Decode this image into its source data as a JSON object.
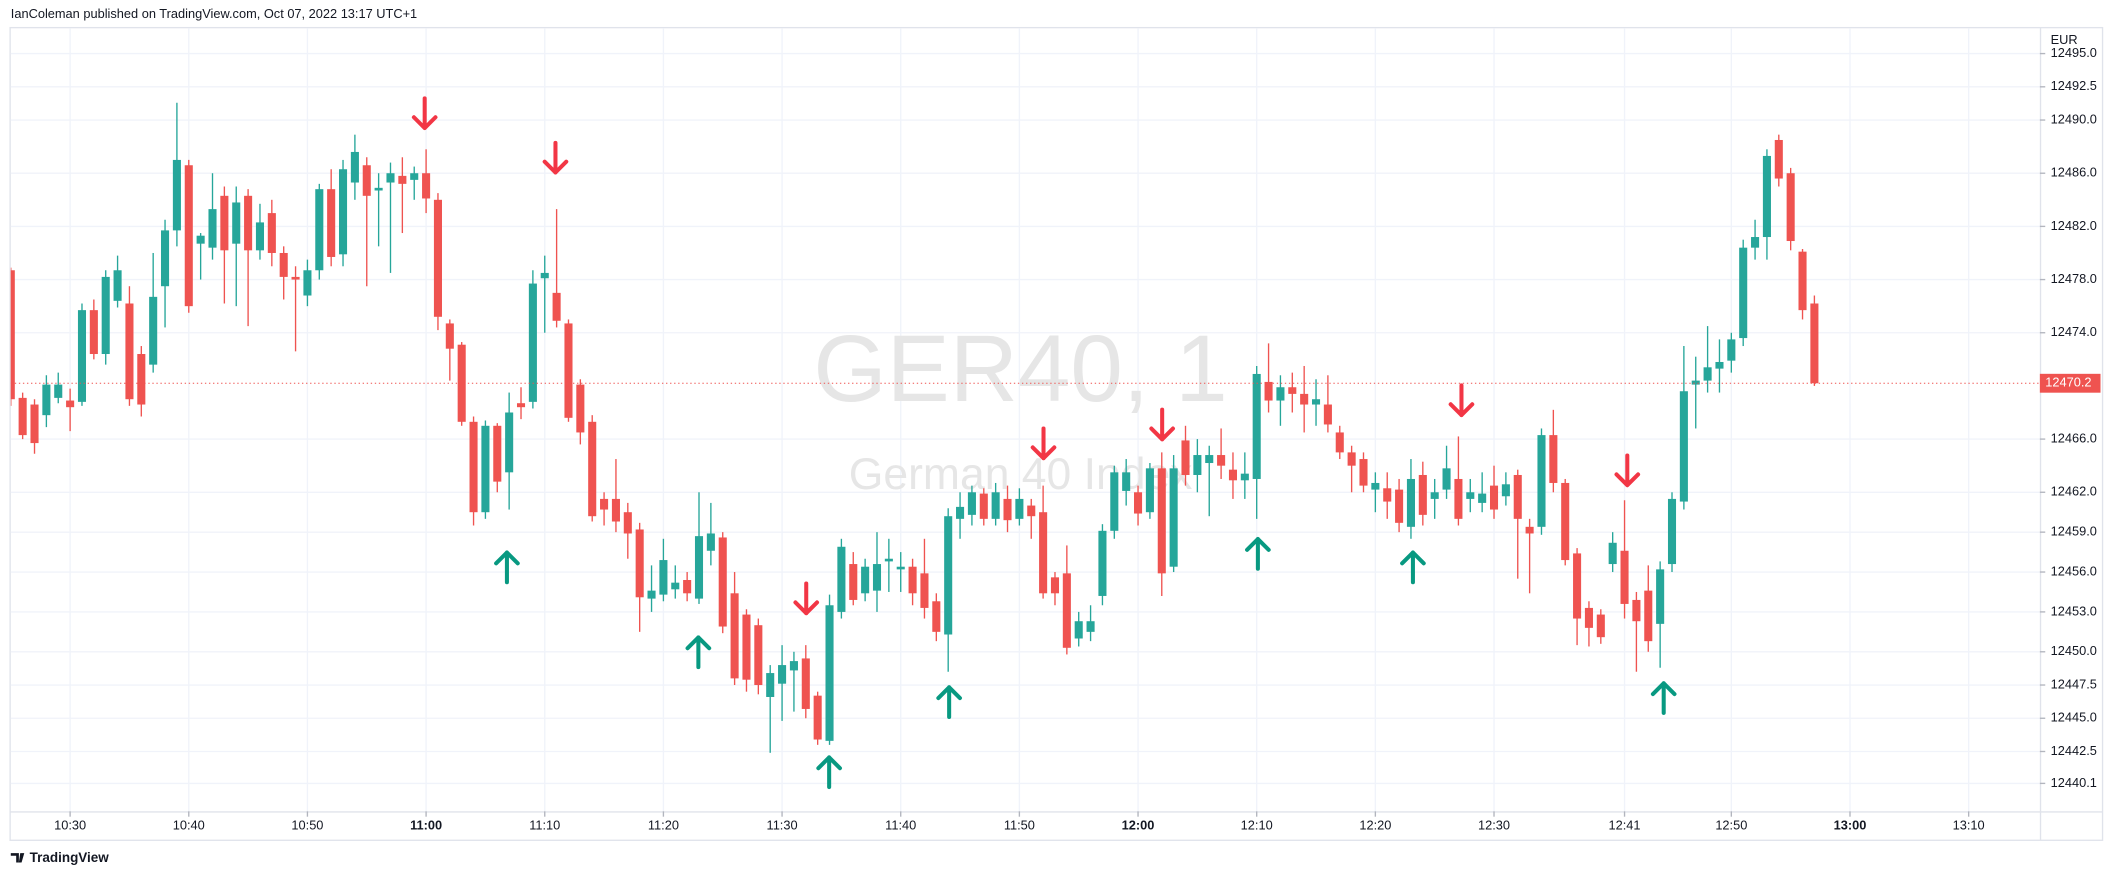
{
  "header": "IanColeman published on TradingView.com, Oct 07, 2022 13:17 UTC+1",
  "footer_brand": "TradingView",
  "chart_data": {
    "type": "candlestick",
    "title": "GER40, 1",
    "subtitle": "German 40 Index",
    "currency": "EUR",
    "up_color": "#26a69a",
    "down_color": "#ef5350",
    "grid": true,
    "last_price": 12470.2,
    "xlim": [
      "10:25",
      "13:16"
    ],
    "xticks": [
      "10:30",
      "10:40",
      "10:50",
      "11:00",
      "11:10",
      "11:20",
      "11:30",
      "11:40",
      "11:50",
      "12:00",
      "12:10",
      "12:20",
      "12:30",
      "12:41",
      "12:50",
      "13:00",
      "13:10"
    ],
    "ylim": [
      12438.0,
      12496.8
    ],
    "yticks": [
      {
        "value": 12440.1,
        "label": "12440.1"
      },
      {
        "value": 12442.5,
        "label": "12442.5"
      },
      {
        "value": 12445,
        "label": "12445.0"
      },
      {
        "value": 12447.5,
        "label": "12447.5"
      },
      {
        "value": 12450,
        "label": "12450.0"
      },
      {
        "value": 12453,
        "label": "12453.0"
      },
      {
        "value": 12456,
        "label": "12456.0"
      },
      {
        "value": 12459,
        "label": "12459.0"
      },
      {
        "value": 12462,
        "label": "12462.0"
      },
      {
        "value": 12466,
        "label": "12466.0"
      },
      {
        "value": 12474,
        "label": "12474.0"
      },
      {
        "value": 12478,
        "label": "12478.0"
      },
      {
        "value": 12482,
        "label": "12482.0"
      },
      {
        "value": 12486,
        "label": "12486.0"
      },
      {
        "value": 12490,
        "label": "12490.0"
      },
      {
        "value": 12492.5,
        "label": "12492.5"
      },
      {
        "value": 12495,
        "label": "12495.0"
      }
    ],
    "x": [
      "10:25",
      "10:26",
      "10:27",
      "10:28",
      "10:29",
      "10:30",
      "10:31",
      "10:32",
      "10:33",
      "10:34",
      "10:35",
      "10:36",
      "10:37",
      "10:38",
      "10:39",
      "10:40",
      "10:41",
      "10:42",
      "10:43",
      "10:44",
      "10:45",
      "10:46",
      "10:47",
      "10:48",
      "10:49",
      "10:50",
      "10:51",
      "10:52",
      "10:53",
      "10:54",
      "10:55",
      "10:56",
      "10:57",
      "10:58",
      "10:59",
      "11:00",
      "11:01",
      "11:02",
      "11:03",
      "11:04",
      "11:05",
      "11:06",
      "11:07",
      "11:08",
      "11:09",
      "11:10",
      "11:11",
      "11:12",
      "11:13",
      "11:14",
      "11:15",
      "11:16",
      "11:17",
      "11:18",
      "11:19",
      "11:20",
      "11:21",
      "11:22",
      "11:23",
      "11:24",
      "11:25",
      "11:26",
      "11:27",
      "11:28",
      "11:29",
      "11:30",
      "11:31",
      "11:32",
      "11:33",
      "11:34",
      "11:35",
      "11:36",
      "11:37",
      "11:38",
      "11:39",
      "11:40",
      "11:41",
      "11:42",
      "11:43",
      "11:44",
      "11:45",
      "11:46",
      "11:47",
      "11:48",
      "11:49",
      "11:50",
      "11:51",
      "11:52",
      "11:53",
      "11:54",
      "11:55",
      "11:56",
      "11:57",
      "11:58",
      "11:59",
      "12:00",
      "12:01",
      "12:02",
      "12:03",
      "12:04",
      "12:05",
      "12:06",
      "12:07",
      "12:08",
      "12:09",
      "12:10",
      "12:11",
      "12:12",
      "12:13",
      "12:14",
      "12:15",
      "12:16",
      "12:17",
      "12:18",
      "12:19",
      "12:20",
      "12:21",
      "12:22",
      "12:23",
      "12:24",
      "12:25",
      "12:26",
      "12:27",
      "12:28",
      "12:29",
      "12:30",
      "12:31",
      "12:32",
      "12:33",
      "12:34",
      "12:35",
      "12:36",
      "12:37",
      "12:38",
      "12:39",
      "12:40",
      "12:41",
      "12:42",
      "12:43",
      "12:44",
      "12:45",
      "12:46",
      "12:47",
      "12:48",
      "12:49",
      "12:50",
      "12:51",
      "12:52",
      "12:53",
      "12:54",
      "12:55",
      "12:56",
      "12:57"
    ],
    "open": [
      12478.7,
      12469.1,
      12468.6,
      12467.8,
      12469.1,
      12468.9,
      12468.8,
      12475.7,
      12472.4,
      12476.4,
      12476.2,
      12472.4,
      12471.6,
      12477.5,
      12481.7,
      12486.6,
      12480.7,
      12480.4,
      12484.3,
      12480.7,
      12484.3,
      12480.2,
      12483.0,
      12480.0,
      12478.2,
      12476.8,
      12478.7,
      12484.8,
      12479.9,
      12485.3,
      12486.6,
      12484.7,
      12485.3,
      12485.8,
      12485.5,
      12486.0,
      12484.0,
      12474.7,
      12473.1,
      12467.3,
      12460.5,
      12467.0,
      12463.5,
      12468.7,
      12468.8,
      12478.1,
      12477.0,
      12474.7,
      12470.1,
      12467.3,
      12461.5,
      12461.5,
      12460.5,
      12459.2,
      12454.0,
      12454.3,
      12454.7,
      12455.4,
      12454.0,
      12457.6,
      12458.6,
      12454.4,
      12452.8,
      12452.0,
      12446.6,
      12447.6,
      12448.6,
      12449.5,
      12446.7,
      12443.3,
      12453.0,
      12456.6,
      12454.4,
      12454.6,
      12456.8,
      12456.2,
      12456.4,
      12455.9,
      12453.8,
      12451.3,
      12460.0,
      12460.3,
      12461.9,
      12460.0,
      12461.5,
      12460.0,
      12461.0,
      12460.5,
      12455.6,
      12455.9,
      12451.0,
      12451.5,
      12454.2,
      12459.1,
      12462.1,
      12462.0,
      12460.5,
      12463.8,
      12456.4,
      12465.9,
      12463.3,
      12464.2,
      12464.8,
      12463.7,
      12462.9,
      12463.0,
      12470.3,
      12468.9,
      12469.9,
      12469.4,
      12468.6,
      12468.6,
      12466.5,
      12465.0,
      12464.5,
      12462.2,
      12462.3,
      12462.2,
      12459.4,
      12463.3,
      12461.5,
      12462.2,
      12463.0,
      12461.5,
      12461.2,
      12462.5,
      12461.7,
      12463.3,
      12459.4,
      12459.4,
      12466.3,
      12462.7,
      12457.4,
      12453.3,
      12452.8,
      12456.6,
      12457.6,
      12453.9,
      12454.6,
      12452.1,
      12456.6,
      12461.3,
      12470.1,
      12470.4,
      12471.3,
      12471.9,
      12473.6,
      12480.4,
      12481.2,
      12488.5,
      12486.0,
      12480.1,
      12476.2
    ],
    "high": [
      12478.9,
      12469.5,
      12469.0,
      12470.8,
      12471.0,
      12469.8,
      12476.2,
      12476.5,
      12478.7,
      12479.8,
      12477.5,
      12473.0,
      12480.0,
      12482.5,
      12491.3,
      12487.0,
      12481.5,
      12486.0,
      12485.0,
      12485.0,
      12484.8,
      12483.7,
      12484.0,
      12480.5,
      12479.0,
      12479.5,
      12485.2,
      12486.3,
      12487.0,
      12488.9,
      12487.2,
      12486.0,
      12486.8,
      12487.2,
      12486.5,
      12487.8,
      12484.5,
      12475.0,
      12473.3,
      12467.7,
      12467.4,
      12467.2,
      12469.5,
      12469.9,
      12478.7,
      12479.8,
      12483.3,
      12475.0,
      12470.5,
      12467.8,
      12462.0,
      12464.5,
      12461.2,
      12459.7,
      12456.5,
      12458.5,
      12456.5,
      12456.0,
      12462.0,
      12461.2,
      12459.0,
      12456.0,
      12453.2,
      12452.5,
      12449.0,
      12450.5,
      12450.0,
      12450.5,
      12447.0,
      12454.3,
      12458.5,
      12457.5,
      12457.0,
      12459.0,
      12458.5,
      12457.5,
      12457.0,
      12458.5,
      12454.4,
      12460.8,
      12462.0,
      12462.5,
      12462.3,
      12462.7,
      12462.5,
      12462.3,
      12461.5,
      12462.5,
      12456.0,
      12458.0,
      12453.0,
      12453.5,
      12459.6,
      12464.0,
      12464.5,
      12462.5,
      12464.2,
      12465.0,
      12464.8,
      12467.0,
      12466.0,
      12465.5,
      12466.8,
      12465.0,
      12465.0,
      12471.5,
      12473.2,
      12470.8,
      12471.0,
      12471.5,
      12470.5,
      12470.8,
      12467.0,
      12465.5,
      12465.0,
      12463.5,
      12463.5,
      12463.0,
      12464.5,
      12464.3,
      12463.0,
      12465.5,
      12466.2,
      12463.0,
      12463.5,
      12464.0,
      12463.5,
      12463.7,
      12460.0,
      12466.8,
      12468.2,
      12463.0,
      12457.8,
      12453.8,
      12453.2,
      12459.0,
      12461.4,
      12454.5,
      12456.5,
      12456.8,
      12462.0,
      12473.0,
      12472.2,
      12474.5,
      12473.5,
      12474.0,
      12481.0,
      12482.5,
      12487.8,
      12488.9,
      12486.4,
      12480.3,
      12476.8
    ],
    "low": [
      12468.5,
      12466.0,
      12464.9,
      12466.9,
      12468.7,
      12466.6,
      12468.5,
      12472.0,
      12471.6,
      12475.9,
      12468.5,
      12467.7,
      12471.0,
      12474.4,
      12480.5,
      12475.5,
      12478.0,
      12479.5,
      12476.2,
      12476.0,
      12474.5,
      12479.5,
      12479.0,
      12476.5,
      12472.6,
      12476.0,
      12478.0,
      12479.0,
      12479.0,
      12484.0,
      12477.5,
      12480.5,
      12478.5,
      12481.5,
      12484.0,
      12483.0,
      12474.2,
      12470.4,
      12467.0,
      12459.5,
      12460.0,
      12462.0,
      12460.7,
      12467.5,
      12468.3,
      12474.0,
      12474.4,
      12467.3,
      12465.6,
      12459.8,
      12459.5,
      12459.0,
      12457.0,
      12451.5,
      12453.0,
      12453.8,
      12454.0,
      12453.8,
      12453.6,
      12456.5,
      12451.4,
      12447.5,
      12447.0,
      12446.8,
      12442.4,
      12444.8,
      12445.5,
      12445.0,
      12443.0,
      12443.0,
      12452.5,
      12453.5,
      12453.8,
      12453.0,
      12454.5,
      12454.5,
      12453.5,
      12452.5,
      12450.8,
      12448.5,
      12458.5,
      12459.5,
      12459.5,
      12459.5,
      12459.0,
      12459.5,
      12458.5,
      12454.0,
      12453.5,
      12449.8,
      12450.4,
      12450.8,
      12453.5,
      12458.5,
      12461.0,
      12459.5,
      12460.0,
      12454.2,
      12456.0,
      12462.5,
      12462.0,
      12460.2,
      12463.0,
      12461.5,
      12461.5,
      12460.0,
      12468.0,
      12467.0,
      12468.0,
      12466.5,
      12467.0,
      12466.5,
      12464.5,
      12462.0,
      12462.0,
      12460.5,
      12460.0,
      12459.0,
      12458.5,
      12459.5,
      12460.0,
      12461.5,
      12459.5,
      12460.5,
      12460.5,
      12460.0,
      12461.0,
      12455.5,
      12454.4,
      12458.8,
      12462.0,
      12456.5,
      12450.5,
      12450.4,
      12450.6,
      12456.0,
      12452.5,
      12448.5,
      12450.0,
      12448.8,
      12456.0,
      12460.7,
      12466.8,
      12469.5,
      12469.5,
      12471.0,
      12473.0,
      12479.5,
      12479.5,
      12485.0,
      12480.2,
      12475.0,
      12470.0
    ],
    "close": [
      12469.0,
      12466.3,
      12465.7,
      12470.1,
      12470.1,
      12468.4,
      12475.7,
      12472.4,
      12478.2,
      12478.7,
      12469.0,
      12468.6,
      12476.7,
      12481.7,
      12487.0,
      12476.0,
      12481.3,
      12483.3,
      12480.2,
      12483.8,
      12480.2,
      12482.3,
      12480.0,
      12478.2,
      12478.0,
      12478.7,
      12484.8,
      12479.7,
      12486.3,
      12487.6,
      12484.3,
      12484.9,
      12486.0,
      12485.2,
      12486.0,
      12484.1,
      12475.2,
      12472.8,
      12467.3,
      12460.5,
      12467.0,
      12462.8,
      12468.0,
      12468.4,
      12477.7,
      12478.5,
      12474.9,
      12467.6,
      12466.5,
      12460.2,
      12460.7,
      12459.8,
      12458.9,
      12454.1,
      12454.6,
      12456.9,
      12455.2,
      12454.4,
      12458.7,
      12458.9,
      12451.9,
      12448.0,
      12447.9,
      12447.5,
      12448.4,
      12449.0,
      12449.3,
      12445.7,
      12443.4,
      12453.5,
      12457.9,
      12453.9,
      12456.4,
      12456.6,
      12457.0,
      12456.4,
      12454.4,
      12453.3,
      12451.5,
      12460.2,
      12460.9,
      12462.0,
      12460.0,
      12462.0,
      12459.9,
      12461.5,
      12460.2,
      12454.4,
      12454.4,
      12450.3,
      12452.3,
      12452.3,
      12459.1,
      12463.5,
      12463.5,
      12460.4,
      12463.8,
      12455.9,
      12463.8,
      12463.3,
      12464.8,
      12464.8,
      12464.0,
      12462.9,
      12463.4,
      12470.9,
      12468.9,
      12469.9,
      12469.4,
      12468.6,
      12469.0,
      12467.1,
      12465.0,
      12464.0,
      12462.5,
      12462.7,
      12461.3,
      12459.7,
      12463.0,
      12460.3,
      12462.0,
      12463.8,
      12460.0,
      12462.0,
      12461.9,
      12460.7,
      12462.6,
      12460.0,
      12458.9,
      12466.3,
      12462.7,
      12456.9,
      12452.5,
      12451.8,
      12451.1,
      12458.2,
      12453.6,
      12452.3,
      12450.8,
      12456.2,
      12461.5,
      12469.6,
      12470.4,
      12471.4,
      12471.8,
      12473.5,
      12480.4,
      12481.2,
      12487.3,
      12485.6,
      12480.9,
      12475.7,
      12470.2
    ]
  }
}
